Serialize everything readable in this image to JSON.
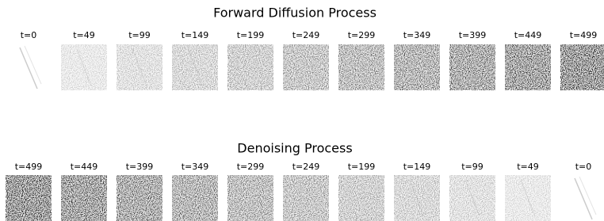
{
  "forward": {
    "title": "Forward Diffusion Process",
    "labels": [
      "t=0",
      "t=49",
      "t=99",
      "t=149",
      "t=199",
      "t=249",
      "t=299",
      "t=349",
      "t=399",
      "t=449",
      "t=499"
    ]
  },
  "denoising": {
    "title": "Denoising Process",
    "labels": [
      "t=499",
      "t=449",
      "t=399",
      "t=349",
      "t=299",
      "t=249",
      "t=199",
      "t=149",
      "t=99",
      "t=49",
      "t=0"
    ]
  }
}
